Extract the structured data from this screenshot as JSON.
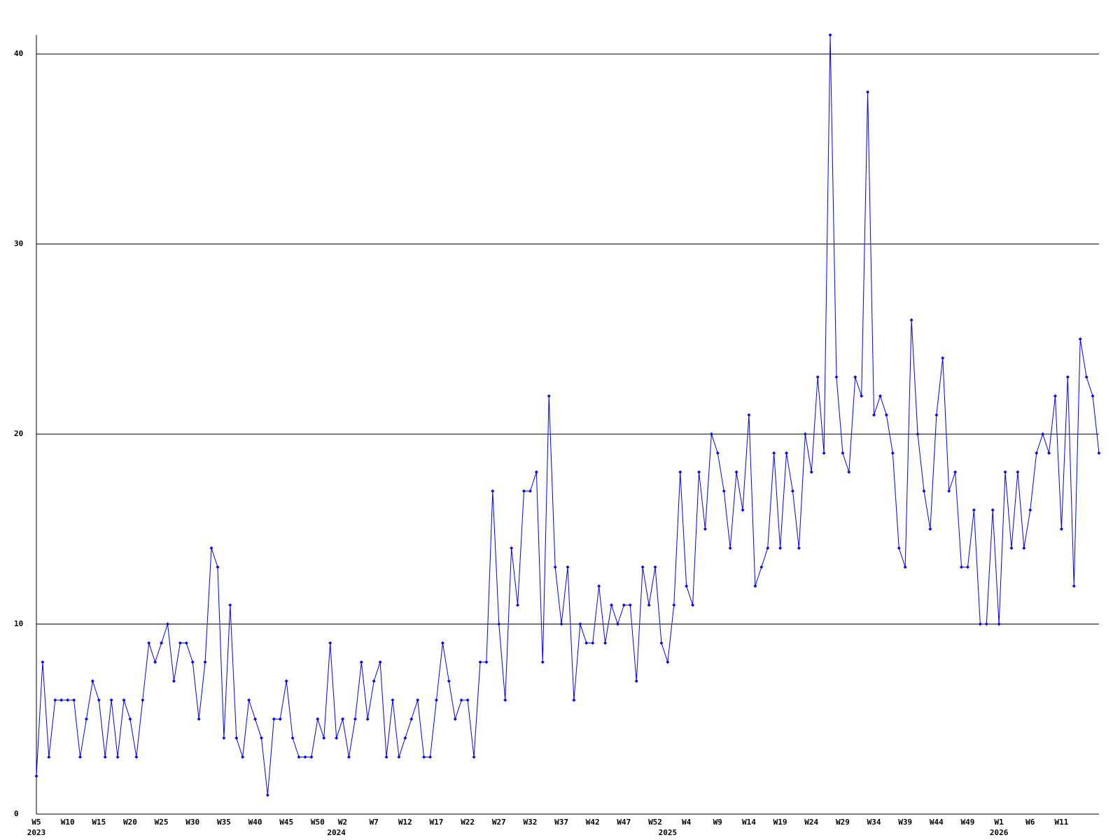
{
  "chart_data": {
    "type": "line",
    "categories": [
      "W5",
      null,
      null,
      null,
      null,
      "W10",
      null,
      null,
      null,
      null,
      "W15",
      null,
      null,
      null,
      null,
      "W20",
      null,
      null,
      null,
      null,
      "W25",
      null,
      null,
      null,
      null,
      "W30",
      null,
      null,
      null,
      null,
      "W35",
      null,
      null,
      null,
      null,
      "W40",
      null,
      null,
      null,
      null,
      "W45",
      null,
      null,
      null,
      null,
      "W50",
      null,
      null,
      null,
      "W2",
      null,
      null,
      null,
      null,
      "W7",
      null,
      null,
      null,
      null,
      "W12",
      null,
      null,
      null,
      null,
      "W17",
      null,
      null,
      null,
      null,
      "W22",
      null,
      null,
      null,
      null,
      "W27",
      null,
      null,
      null,
      null,
      "W32",
      null,
      null,
      null,
      null,
      "W37",
      null,
      null,
      null,
      null,
      "W42",
      null,
      null,
      null,
      null,
      "W47",
      null,
      null,
      null,
      null,
      "W52",
      null,
      null,
      null,
      null,
      "W4",
      null,
      null,
      null,
      null,
      "W9",
      null,
      null,
      null,
      null,
      "W14",
      null,
      null,
      null,
      null,
      "W19",
      null,
      null,
      null,
      null,
      "W24",
      null,
      null,
      null,
      null,
      "W29",
      null,
      null,
      null,
      null,
      "W34",
      null,
      null,
      null,
      null,
      "W39",
      null,
      null,
      null,
      null,
      "W44",
      null,
      null,
      null,
      null,
      "W49",
      null,
      null,
      null,
      null,
      "W1",
      null,
      null,
      null,
      null,
      "W6",
      null,
      null,
      null,
      null,
      "W11",
      null,
      null,
      null,
      null,
      null,
      null
    ],
    "year_labels": [
      "2023",
      null,
      null,
      null,
      null,
      null,
      null,
      null,
      null,
      null,
      null,
      null,
      null,
      null,
      null,
      null,
      null,
      null,
      null,
      null,
      null,
      null,
      null,
      null,
      null,
      null,
      null,
      null,
      null,
      null,
      null,
      null,
      null,
      null,
      null,
      null,
      null,
      null,
      null,
      null,
      null,
      null,
      null,
      null,
      null,
      null,
      null,
      null,
      "2024",
      null,
      null,
      null,
      null,
      null,
      null,
      null,
      null,
      null,
      null,
      null,
      null,
      null,
      null,
      null,
      null,
      null,
      null,
      null,
      null,
      null,
      null,
      null,
      null,
      null,
      null,
      null,
      null,
      null,
      null,
      null,
      null,
      null,
      null,
      null,
      null,
      null,
      null,
      null,
      null,
      null,
      null,
      null,
      null,
      null,
      null,
      null,
      null,
      null,
      null,
      null,
      null,
      "2025",
      null,
      null,
      null,
      null,
      null,
      null,
      null,
      null,
      null,
      null,
      null,
      null,
      null,
      null,
      null,
      null,
      null,
      null,
      null,
      null,
      null,
      null,
      null,
      null,
      null,
      null,
      null,
      null,
      null,
      null,
      null,
      null,
      null,
      null,
      null,
      null,
      null,
      null,
      null,
      null,
      null,
      null,
      null,
      null,
      null,
      null,
      null,
      null,
      null,
      null,
      null,
      null,
      "2026",
      null,
      null,
      null,
      null,
      null,
      null,
      null,
      null,
      null,
      null,
      null,
      null,
      null,
      null,
      null,
      null
    ],
    "values": [
      2,
      8,
      3,
      6,
      6,
      6,
      6,
      3,
      5,
      7,
      6,
      3,
      6,
      3,
      6,
      5,
      3,
      6,
      9,
      8,
      9,
      10,
      7,
      9,
      9,
      8,
      5,
      8,
      14,
      13,
      4,
      11,
      4,
      3,
      6,
      5,
      4,
      1,
      5,
      5,
      7,
      4,
      3,
      3,
      3,
      5,
      4,
      9,
      4,
      5,
      3,
      5,
      8,
      5,
      7,
      8,
      3,
      6,
      3,
      4,
      5,
      6,
      3,
      3,
      6,
      9,
      7,
      5,
      6,
      6,
      3,
      8,
      8,
      17,
      10,
      6,
      14,
      11,
      17,
      17,
      18,
      8,
      22,
      13,
      10,
      13,
      6,
      10,
      9,
      9,
      12,
      9,
      11,
      10,
      11,
      11,
      7,
      13,
      11,
      13,
      9,
      8,
      11,
      18,
      12,
      11,
      18,
      15,
      20,
      19,
      17,
      14,
      18,
      16,
      21,
      12,
      13,
      14,
      19,
      14,
      19,
      17,
      14,
      20,
      18,
      23,
      19,
      41,
      23,
      19,
      18,
      23,
      22,
      38,
      21,
      22,
      21,
      19,
      14,
      13,
      26,
      20,
      17,
      15,
      21,
      24,
      17,
      18,
      13,
      13,
      16,
      10,
      10,
      16,
      10,
      18,
      14,
      18,
      14,
      16,
      19,
      20,
      19,
      22,
      15,
      23,
      12,
      25,
      23,
      22,
      19
    ],
    "color": "#0000ff",
    "ylim": [
      0,
      41
    ],
    "yticks": [
      0,
      10,
      20,
      30,
      40
    ],
    "grid": true
  }
}
